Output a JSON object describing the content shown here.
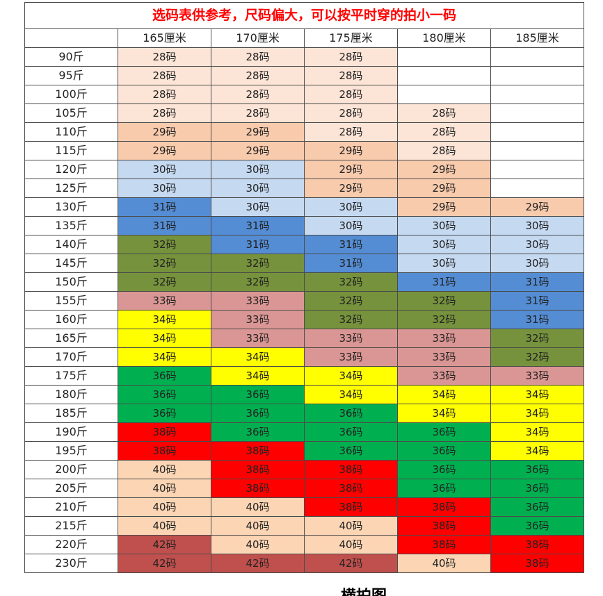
{
  "title": "选码表供参考，尺码偏大，可以按平时穿的拍小一码",
  "heights": [
    "165厘米",
    "170厘米",
    "175厘米",
    "180厘米",
    "185厘米"
  ],
  "colors": {
    "28码": "#fce4d6",
    "29码": "#f8cbad",
    "30码": "#c5d9f1",
    "31码": "#548dd4",
    "32码": "#76923c",
    "33码": "#da9694",
    "34码": "#ffff00",
    "36码": "#00b050",
    "38码": "#ff0000",
    "40码": "#fcd5b4",
    "42码": "#c0504d"
  },
  "rows": [
    {
      "weight": "90斤",
      "sizes": [
        "28码",
        "28码",
        "28码",
        "",
        ""
      ]
    },
    {
      "weight": "95斤",
      "sizes": [
        "28码",
        "28码",
        "28码",
        "",
        ""
      ]
    },
    {
      "weight": "100斤",
      "sizes": [
        "28码",
        "28码",
        "28码",
        "",
        ""
      ]
    },
    {
      "weight": "105斤",
      "sizes": [
        "28码",
        "28码",
        "28码",
        "28码",
        ""
      ]
    },
    {
      "weight": "110斤",
      "sizes": [
        "29码",
        "29码",
        "28码",
        "28码",
        ""
      ]
    },
    {
      "weight": "115斤",
      "sizes": [
        "29码",
        "29码",
        "29码",
        "28码",
        ""
      ]
    },
    {
      "weight": "120斤",
      "sizes": [
        "30码",
        "30码",
        "29码",
        "29码",
        ""
      ]
    },
    {
      "weight": "125斤",
      "sizes": [
        "30码",
        "30码",
        "29码",
        "29码",
        ""
      ]
    },
    {
      "weight": "130斤",
      "sizes": [
        "31码",
        "30码",
        "30码",
        "29码",
        "29码"
      ]
    },
    {
      "weight": "135斤",
      "sizes": [
        "31码",
        "31码",
        "30码",
        "30码",
        "30码"
      ]
    },
    {
      "weight": "140斤",
      "sizes": [
        "32码",
        "31码",
        "31码",
        "30码",
        "30码"
      ]
    },
    {
      "weight": "145斤",
      "sizes": [
        "32码",
        "32码",
        "31码",
        "30码",
        "30码"
      ]
    },
    {
      "weight": "150斤",
      "sizes": [
        "32码",
        "32码",
        "32码",
        "31码",
        "31码"
      ]
    },
    {
      "weight": "155斤",
      "sizes": [
        "33码",
        "33码",
        "32码",
        "32码",
        "31码"
      ]
    },
    {
      "weight": "160斤",
      "sizes": [
        "34码",
        "33码",
        "32码",
        "32码",
        "31码"
      ]
    },
    {
      "weight": "165斤",
      "sizes": [
        "34码",
        "33码",
        "33码",
        "33码",
        "32码"
      ]
    },
    {
      "weight": "170斤",
      "sizes": [
        "34码",
        "34码",
        "33码",
        "33码",
        "32码"
      ]
    },
    {
      "weight": "175斤",
      "sizes": [
        "36码",
        "34码",
        "34码",
        "33码",
        "33码"
      ]
    },
    {
      "weight": "180斤",
      "sizes": [
        "36码",
        "36码",
        "34码",
        "34码",
        "34码"
      ]
    },
    {
      "weight": "185斤",
      "sizes": [
        "36码",
        "36码",
        "36码",
        "34码",
        "34码"
      ]
    },
    {
      "weight": "190斤",
      "sizes": [
        "38码",
        "36码",
        "36码",
        "36码",
        "34码"
      ]
    },
    {
      "weight": "195斤",
      "sizes": [
        "38码",
        "38码",
        "36码",
        "36码",
        "34码"
      ]
    },
    {
      "weight": "200斤",
      "sizes": [
        "40码",
        "38码",
        "38码",
        "36码",
        "36码"
      ]
    },
    {
      "weight": "205斤",
      "sizes": [
        "40码",
        "38码",
        "38码",
        "36码",
        "36码"
      ]
    },
    {
      "weight": "210斤",
      "sizes": [
        "40码",
        "40码",
        "38码",
        "38码",
        "36码"
      ]
    },
    {
      "weight": "215斤",
      "sizes": [
        "40码",
        "40码",
        "40码",
        "38码",
        "36码"
      ]
    },
    {
      "weight": "220斤",
      "sizes": [
        "42码",
        "40码",
        "40码",
        "38码",
        "38码"
      ]
    },
    {
      "weight": "230斤",
      "sizes": [
        "42码",
        "42码",
        "42码",
        "40码",
        "38码"
      ]
    }
  ],
  "footer_text": "横拍图"
}
